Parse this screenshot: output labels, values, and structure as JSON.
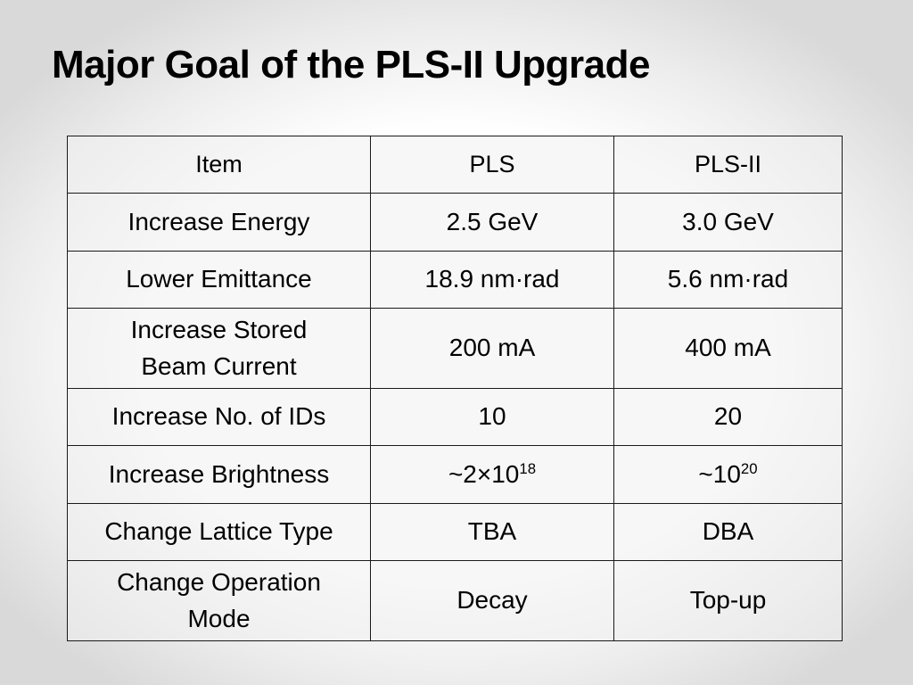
{
  "slide": {
    "title": "Major Goal of the PLS-II Upgrade"
  },
  "table": {
    "headers": [
      "Item",
      "PLS",
      "PLS-II"
    ],
    "rows": [
      {
        "item": "Increase Energy",
        "pls": "2.5 GeV",
        "pls2": "3.0 GeV"
      },
      {
        "item": "Lower Emittance",
        "pls": "18.9 nm·rad",
        "pls2": "5.6 nm·rad"
      },
      {
        "item_line1": "Increase Stored",
        "item_line2": "Beam Current",
        "pls": "200 mA",
        "pls2": "400 mA"
      },
      {
        "item": "Increase No. of IDs",
        "pls": "10",
        "pls2": "20"
      },
      {
        "item": "Increase Brightness",
        "pls_base": "~2×10",
        "pls_exp": "18",
        "pls2_base": "~10",
        "pls2_exp": "20"
      },
      {
        "item": "Change Lattice Type",
        "pls": "TBA",
        "pls2": "DBA"
      },
      {
        "item_line1": "Change Operation",
        "item_line2": "Mode",
        "pls": "Decay",
        "pls2": "Top-up"
      }
    ]
  }
}
